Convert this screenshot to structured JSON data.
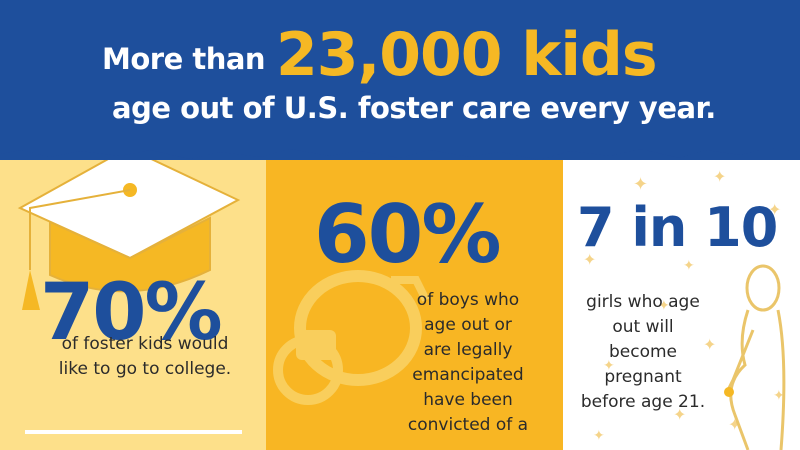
{
  "header": {
    "prefix": "More than",
    "highlight": "23,000 kids",
    "subline": "age out of U.S. foster care every year."
  },
  "stats": [
    {
      "value": "70%",
      "text_lines": [
        "of foster kids would",
        "like to go to college."
      ]
    },
    {
      "value": "60%",
      "text_lines": [
        "of boys who",
        "age out or",
        "are legally",
        "emancipated",
        "have been",
        "convicted of a"
      ]
    },
    {
      "value": "7 in 10",
      "text_lines": [
        "girls who age",
        "out will",
        "become",
        "pregnant",
        "before age 21."
      ]
    }
  ],
  "icons": [
    "graduation-cap-icon",
    "handcuffs-icon",
    "pregnant-woman-icon"
  ],
  "colors": {
    "blue": "#1e4f9c",
    "gold": "#f5b824",
    "light_yellow": "#fde08a",
    "orange": "#f8b623"
  }
}
